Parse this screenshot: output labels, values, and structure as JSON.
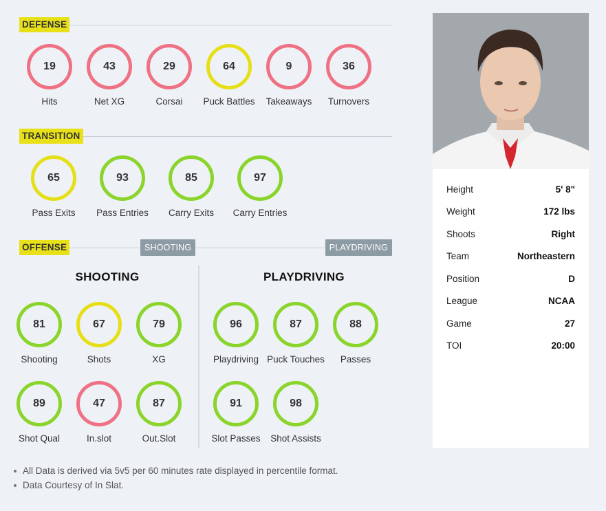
{
  "defense": {
    "title": "DEFENSE",
    "metrics": [
      {
        "label": "Hits",
        "value": "19",
        "color": "red"
      },
      {
        "label": "Net XG",
        "value": "43",
        "color": "red"
      },
      {
        "label": "Corsai",
        "value": "29",
        "color": "red"
      },
      {
        "label": "Puck Battles",
        "value": "64",
        "color": "yellow"
      },
      {
        "label": "Takeaways",
        "value": "9",
        "color": "red"
      },
      {
        "label": "Turnovers",
        "value": "36",
        "color": "red"
      }
    ]
  },
  "transition": {
    "title": "TRANSITION",
    "metrics": [
      {
        "label": "Pass Exits",
        "value": "65",
        "color": "yellow"
      },
      {
        "label": "Pass Entries",
        "value": "93",
        "color": "green"
      },
      {
        "label": "Carry Exits",
        "value": "85",
        "color": "green"
      },
      {
        "label": "Carry Entries",
        "value": "97",
        "color": "green"
      }
    ]
  },
  "offense": {
    "title": "OFFENSE",
    "tab_shooting": "SHOOTING",
    "tab_playdriving": "PLAYDRIVING",
    "shooting": {
      "title": "SHOOTING",
      "metrics": [
        {
          "label": "Shooting",
          "value": "81",
          "color": "green"
        },
        {
          "label": "Shots",
          "value": "67",
          "color": "yellow"
        },
        {
          "label": "XG",
          "value": "79",
          "color": "green"
        },
        {
          "label": "Shot Qual",
          "value": "89",
          "color": "green"
        },
        {
          "label": "In.slot",
          "value": "47",
          "color": "red"
        },
        {
          "label": "Out.Slot",
          "value": "87",
          "color": "green"
        }
      ]
    },
    "playdriving": {
      "title": "PLAYDRIVING",
      "metrics": [
        {
          "label": "Playdriving",
          "value": "96",
          "color": "green"
        },
        {
          "label": "Puck Touches",
          "value": "87",
          "color": "green"
        },
        {
          "label": "Passes",
          "value": "88",
          "color": "green"
        },
        {
          "label": "Slot Passes",
          "value": "91",
          "color": "green"
        },
        {
          "label": "Shot Assists",
          "value": "98",
          "color": "green"
        }
      ]
    }
  },
  "colors": {
    "red": "#ef7184",
    "yellow": "#e6df17",
    "green": "#8ad42c",
    "tag": "#e8e019",
    "pill": "#8d9ba5"
  },
  "player": {
    "info": [
      {
        "key": "Height",
        "value": "5' 8\""
      },
      {
        "key": "Weight",
        "value": "172 lbs"
      },
      {
        "key": "Shoots",
        "value": "Right"
      },
      {
        "key": "Team",
        "value": "Northeastern"
      },
      {
        "key": "Position",
        "value": "D"
      },
      {
        "key": "League",
        "value": "NCAA"
      },
      {
        "key": "Game",
        "value": "27"
      },
      {
        "key": "TOI",
        "value": "20:00"
      }
    ]
  },
  "notes": [
    "All Data is derived via 5v5 per 60 minutes rate displayed in percentile format.",
    "Data Courtesy of In Slat."
  ]
}
